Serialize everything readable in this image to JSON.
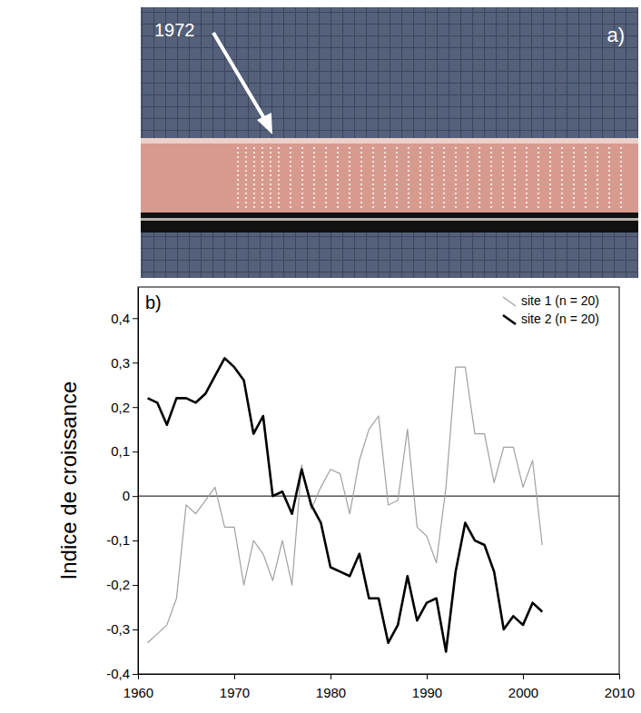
{
  "photo": {
    "label": "a)",
    "annotation": "1972"
  },
  "chart_data": {
    "type": "line",
    "panel_label": "b)",
    "y_label": "Indice de croissance",
    "x": [
      1961,
      1962,
      1963,
      1964,
      1965,
      1966,
      1967,
      1968,
      1969,
      1970,
      1971,
      1972,
      1973,
      1974,
      1975,
      1976,
      1977,
      1978,
      1979,
      1980,
      1981,
      1982,
      1983,
      1984,
      1985,
      1986,
      1987,
      1988,
      1989,
      1990,
      1991,
      1992,
      1993,
      1994,
      1995,
      1996,
      1997,
      1998,
      1999,
      2000,
      2001,
      2002
    ],
    "series": [
      {
        "name": "site 1 (n = 20)",
        "color": "#a0a0a0",
        "line_style": "thin",
        "values": [
          -0.33,
          -0.31,
          -0.29,
          -0.23,
          -0.02,
          -0.04,
          -0.01,
          0.02,
          -0.07,
          -0.07,
          -0.2,
          -0.1,
          -0.13,
          -0.19,
          -0.1,
          -0.2,
          0.07,
          -0.03,
          0.02,
          0.06,
          0.05,
          -0.04,
          0.08,
          0.15,
          0.18,
          -0.02,
          -0.01,
          0.15,
          -0.07,
          -0.09,
          -0.15,
          0.02,
          0.29,
          0.29,
          0.14,
          0.14,
          0.03,
          0.11,
          0.11,
          0.02,
          0.08,
          -0.11
        ]
      },
      {
        "name": "site 2 (n = 20)",
        "color": "#000000",
        "line_style": "thick",
        "values": [
          0.22,
          0.21,
          0.16,
          0.22,
          0.22,
          0.21,
          0.23,
          0.27,
          0.31,
          0.29,
          0.26,
          0.14,
          0.18,
          0.0,
          0.01,
          -0.04,
          0.06,
          -0.02,
          -0.06,
          -0.16,
          -0.17,
          -0.18,
          -0.13,
          -0.23,
          -0.23,
          -0.33,
          -0.29,
          -0.18,
          -0.28,
          -0.24,
          -0.23,
          -0.35,
          -0.17,
          -0.06,
          -0.1,
          -0.11,
          -0.17,
          -0.3,
          -0.27,
          -0.29,
          -0.24,
          -0.26
        ]
      }
    ],
    "zero_line": 0,
    "xlim": [
      1960,
      2010
    ],
    "xticks": [
      1960,
      1970,
      1980,
      1990,
      2000,
      2010
    ],
    "ylim": [
      -0.4,
      0.47
    ],
    "yticks": [
      {
        "value": -0.4,
        "label": "-0,4"
      },
      {
        "value": -0.3,
        "label": "-0,3"
      },
      {
        "value": -0.2,
        "label": "-0,2"
      },
      {
        "value": -0.1,
        "label": "-0,1"
      },
      0,
      {
        "value": 0.1,
        "label": "0,1"
      },
      {
        "value": 0.2,
        "label": "0,2"
      },
      {
        "value": 0.3,
        "label": "0,3"
      },
      {
        "value": 0.4,
        "label": "0,4"
      }
    ],
    "legend": "upper right",
    "grid": false
  }
}
